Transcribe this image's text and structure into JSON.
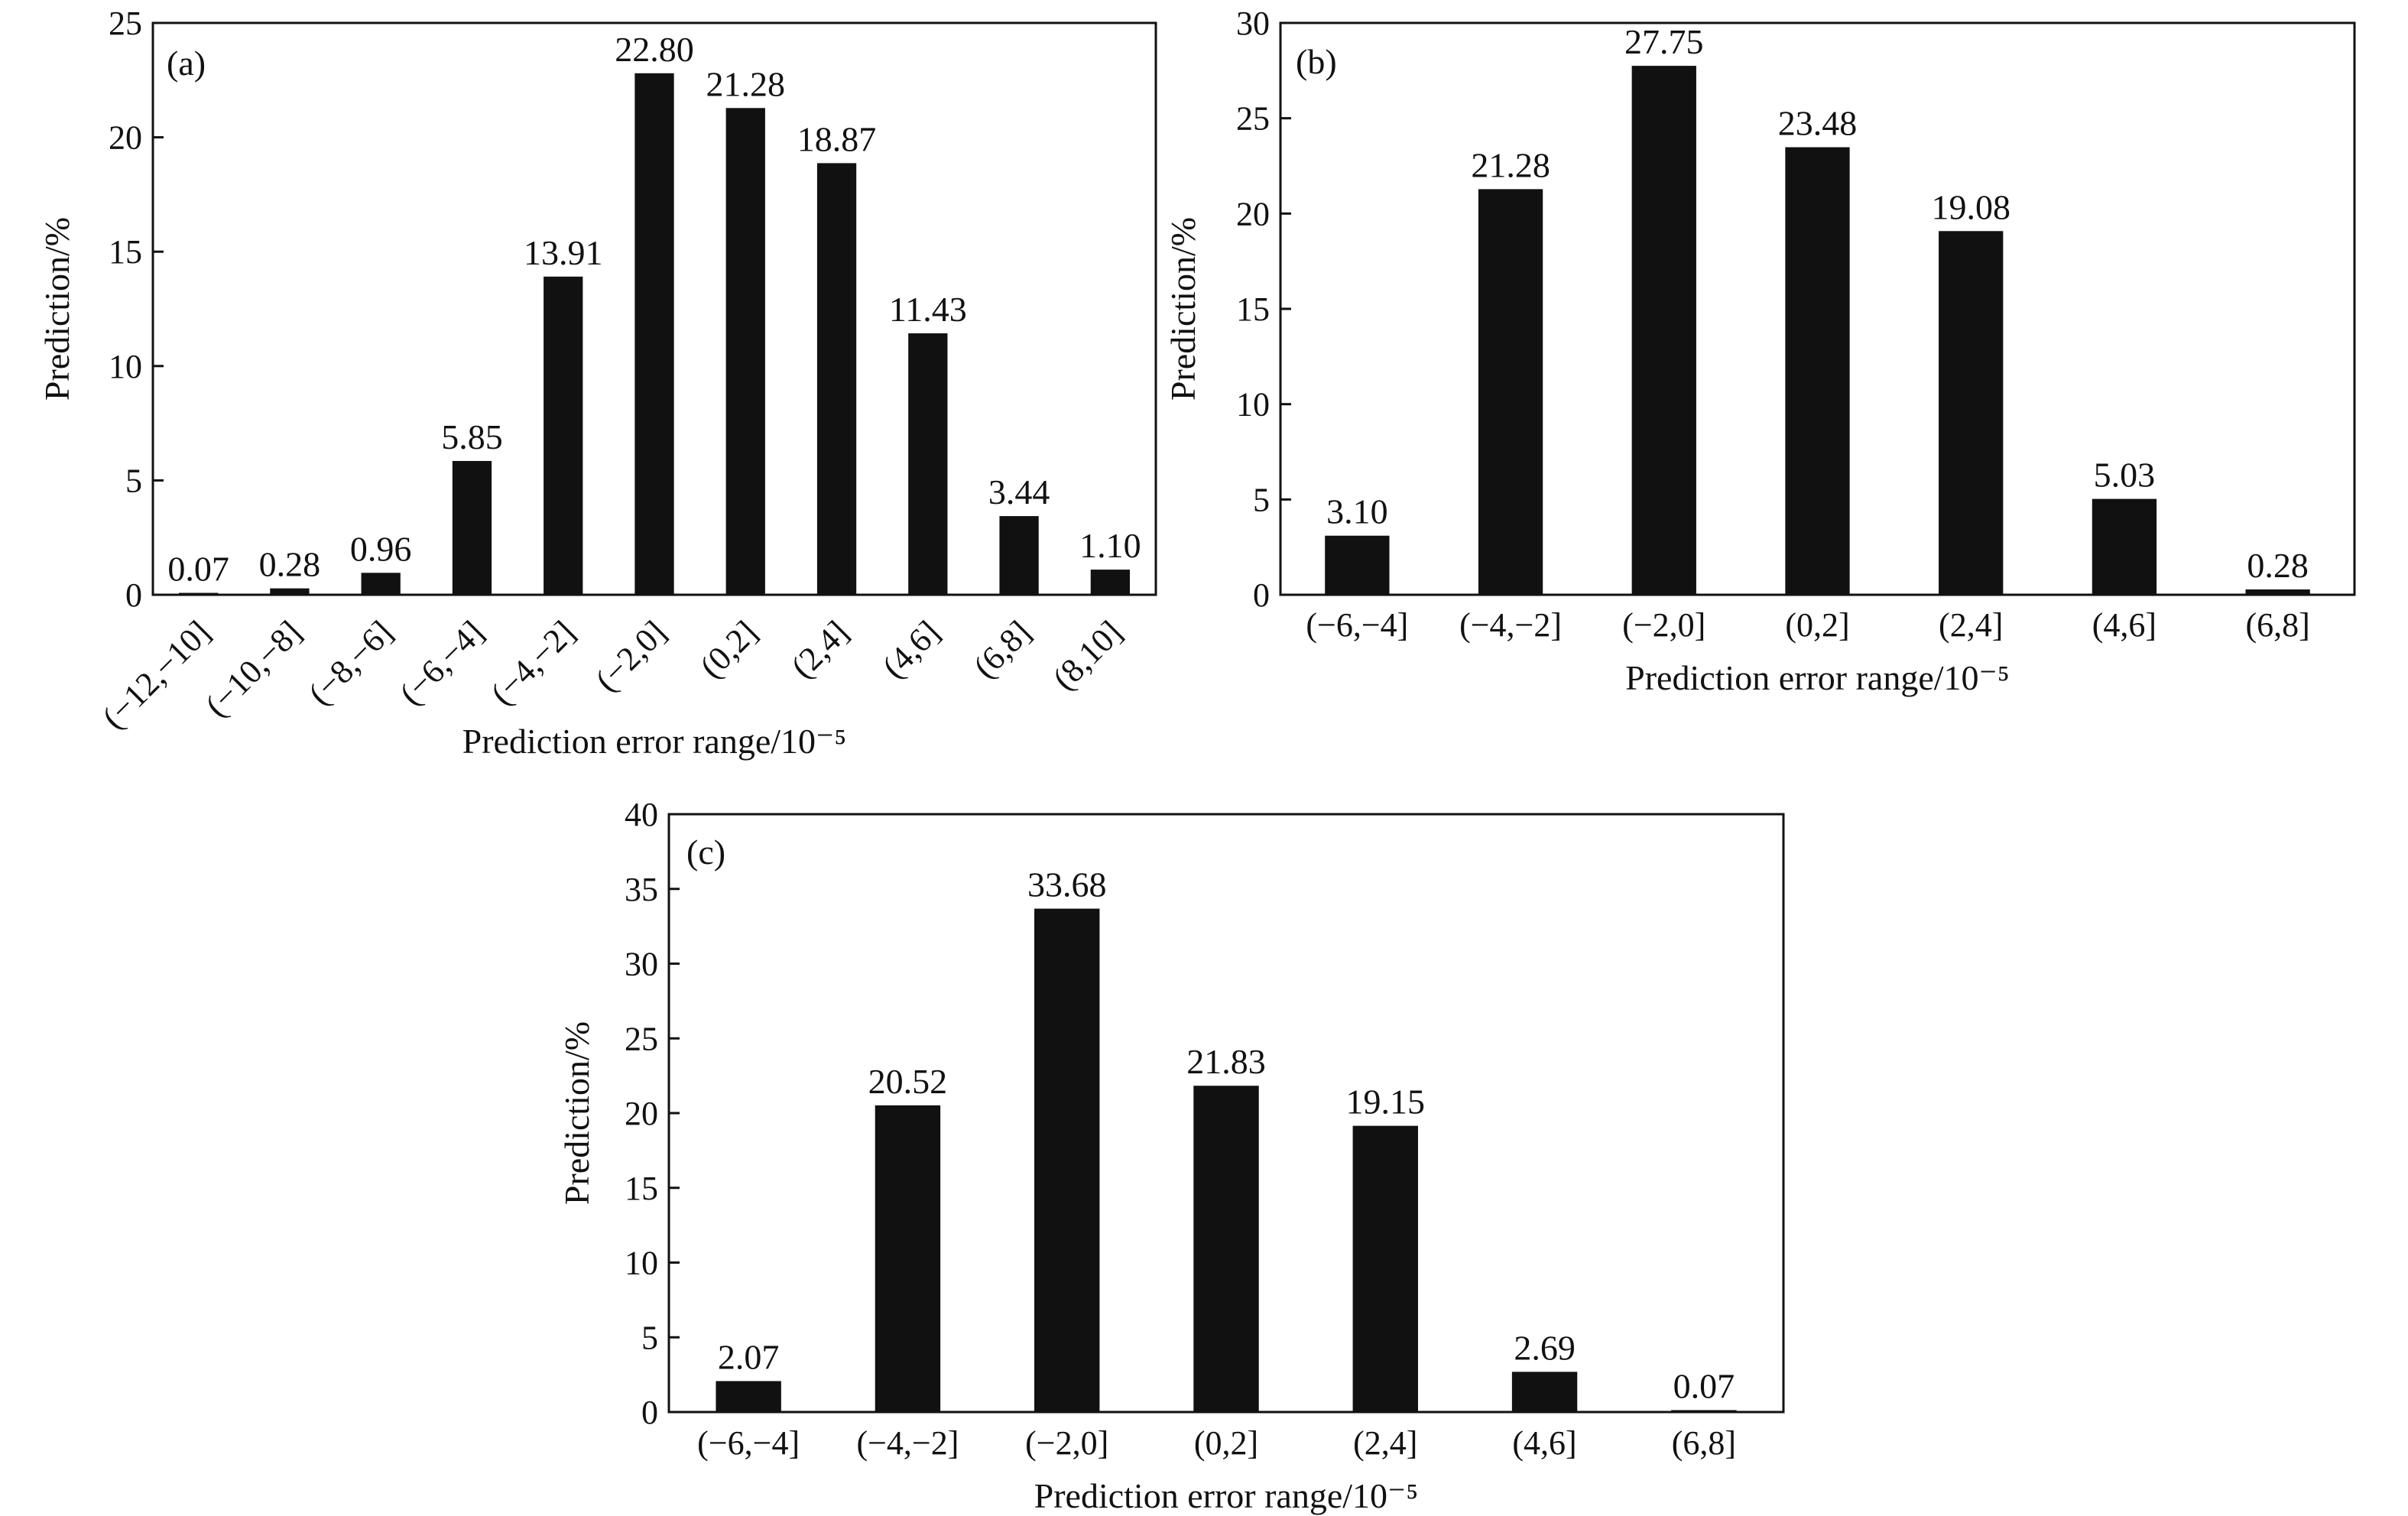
{
  "colors": {
    "bar": "#111111",
    "axis": "#111111",
    "background": "#ffffff"
  },
  "chart_data": [
    {
      "type": "bar",
      "panel_label": "(a)",
      "categories": [
        "(−12,−10]",
        "(−10,−8]",
        "(−8,−6]",
        "(−6,−4]",
        "(−4,−2]",
        "(−2,0]",
        "(0,2]",
        "(2,4]",
        "(4,6]",
        "(6,8]",
        "(8,10]"
      ],
      "values": [
        0.07,
        0.28,
        0.96,
        5.85,
        13.91,
        22.8,
        21.28,
        18.87,
        11.43,
        3.44,
        1.1
      ],
      "data_labels": [
        "0.07",
        "0.28",
        "0.96",
        "5.85",
        "13.91",
        "22.80",
        "21.28",
        "18.87",
        "11.43",
        "3.44",
        "1.10"
      ],
      "xlabel": "Prediction error range/10⁻⁵",
      "ylabel": "Prediction/%",
      "ylim": [
        0,
        25
      ],
      "yticks": [
        0,
        5,
        10,
        15,
        20,
        25
      ],
      "xtick_rotation": "rotated",
      "grid": false,
      "legend": "none"
    },
    {
      "type": "bar",
      "panel_label": "(b)",
      "categories": [
        "(−6,−4]",
        "(−4,−2]",
        "(−2,0]",
        "(0,2]",
        "(2,4]",
        "(4,6]",
        "(6,8]"
      ],
      "values": [
        3.1,
        21.28,
        27.75,
        23.48,
        19.08,
        5.03,
        0.28
      ],
      "data_labels": [
        "3.10",
        "21.28",
        "27.75",
        "23.48",
        "19.08",
        "5.03",
        "0.28"
      ],
      "xlabel": "Prediction error range/10⁻⁵",
      "ylabel": "Prediction/%",
      "ylim": [
        0,
        30
      ],
      "yticks": [
        0,
        5,
        10,
        15,
        20,
        25,
        30
      ],
      "xtick_rotation": "horizontal",
      "grid": false,
      "legend": "none"
    },
    {
      "type": "bar",
      "panel_label": "(c)",
      "categories": [
        "(−6,−4]",
        "(−4,−2]",
        "(−2,0]",
        "(0,2]",
        "(2,4]",
        "(4,6]",
        "(6,8]"
      ],
      "values": [
        2.07,
        20.52,
        33.68,
        21.83,
        19.15,
        2.69,
        0.07
      ],
      "data_labels": [
        "2.07",
        "20.52",
        "33.68",
        "21.83",
        "19.15",
        "2.69",
        "0.07"
      ],
      "xlabel": "Prediction error range/10⁻⁵",
      "ylabel": "Prediction/%",
      "ylim": [
        0,
        40
      ],
      "yticks": [
        0,
        5,
        10,
        15,
        20,
        25,
        30,
        35,
        40
      ],
      "xtick_rotation": "horizontal",
      "grid": false,
      "legend": "none"
    }
  ]
}
